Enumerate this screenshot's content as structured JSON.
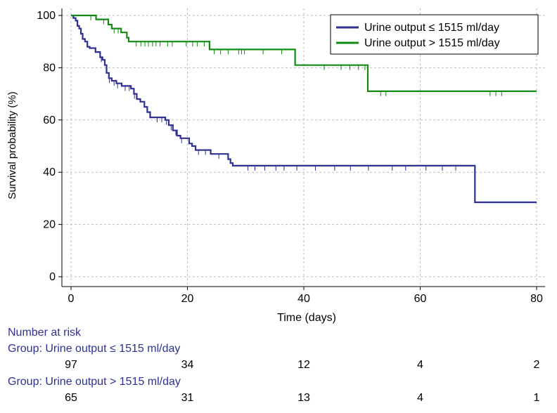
{
  "chart_data": {
    "type": "line",
    "subtype": "kaplan-meier",
    "title": "",
    "xlabel": "Time (days)",
    "ylabel": "Survival probability (%)",
    "xlim": [
      0,
      80
    ],
    "ylim": [
      0,
      100
    ],
    "xticks": [
      0,
      20,
      40,
      60,
      80
    ],
    "yticks": [
      0,
      20,
      40,
      60,
      80,
      100
    ],
    "grid": "dashed",
    "legend_position": "top-right",
    "series": [
      {
        "name": "Urine output ≤ 1515 ml/day",
        "color": "#2e3192",
        "steps": [
          [
            0,
            100
          ],
          [
            0.4,
            99
          ],
          [
            0.8,
            98
          ],
          [
            1.1,
            96
          ],
          [
            1.4,
            95
          ],
          [
            1.7,
            93
          ],
          [
            2.0,
            91
          ],
          [
            2.4,
            90
          ],
          [
            2.8,
            88
          ],
          [
            3.2,
            87.5
          ],
          [
            4.2,
            86
          ],
          [
            5.0,
            84
          ],
          [
            5.4,
            83
          ],
          [
            5.8,
            81
          ],
          [
            6.1,
            78
          ],
          [
            6.5,
            76
          ],
          [
            7.0,
            75
          ],
          [
            7.8,
            74
          ],
          [
            8.7,
            73
          ],
          [
            10.3,
            72
          ],
          [
            10.8,
            70
          ],
          [
            11.3,
            68
          ],
          [
            11.9,
            67
          ],
          [
            12.6,
            65
          ],
          [
            13.1,
            63
          ],
          [
            13.6,
            61
          ],
          [
            16.2,
            60
          ],
          [
            16.8,
            58
          ],
          [
            17.5,
            56
          ],
          [
            18.2,
            54
          ],
          [
            18.8,
            53
          ],
          [
            20.3,
            51
          ],
          [
            20.8,
            50
          ],
          [
            21.4,
            48.5
          ],
          [
            24.0,
            47
          ],
          [
            27.0,
            45
          ],
          [
            27.4,
            43.5
          ],
          [
            27.8,
            42.5
          ],
          [
            69.4,
            28.5
          ],
          [
            80,
            28.5
          ]
        ],
        "censored": [
          5.2,
          6.6,
          7.4,
          8.0,
          9.3,
          10.0,
          10.9,
          14.8,
          15.6,
          16.4,
          17.2,
          18.0,
          19.0,
          21.9,
          23.1,
          25.4,
          30.4,
          31.6,
          33.3,
          35.2,
          36.6,
          38.8,
          42.0,
          45.3,
          48.0,
          51.1,
          55.2,
          57.5,
          61.0,
          63.8,
          66.1
        ],
        "at_risk": [
          97,
          34,
          12,
          4,
          2
        ]
      },
      {
        "name": "Urine output > 1515 ml/day",
        "color": "#138a13",
        "steps": [
          [
            0,
            100
          ],
          [
            4.3,
            98.5
          ],
          [
            6.4,
            96.5
          ],
          [
            7.0,
            95
          ],
          [
            8.6,
            93.5
          ],
          [
            9.6,
            91.5
          ],
          [
            9.9,
            90
          ],
          [
            23.8,
            87
          ],
          [
            38.5,
            81
          ],
          [
            51.0,
            71
          ],
          [
            80,
            71
          ]
        ],
        "censored": [
          3.4,
          5.6,
          7.4,
          8.1,
          11.2,
          12.0,
          12.7,
          13.3,
          14.0,
          14.6,
          15.3,
          16.6,
          17.4,
          19.8,
          20.9,
          21.7,
          22.9,
          24.6,
          25.7,
          27.0,
          28.8,
          29.3,
          29.8,
          33.0,
          36.2,
          43.5,
          46.4,
          47.9,
          49.4,
          50.5,
          53.2,
          54.1,
          72.0,
          73.0,
          74.0
        ],
        "at_risk": [
          65,
          31,
          13,
          4,
          1
        ]
      }
    ]
  },
  "risk_table": {
    "title": "Number at risk",
    "groups": [
      {
        "label": "Group: Urine output ≤ 1515 ml/day",
        "counts": [
          "97",
          "34",
          "12",
          "4",
          "2"
        ]
      },
      {
        "label": "Group: Urine output > 1515 ml/day",
        "counts": [
          "65",
          "31",
          "13",
          "4",
          "1"
        ]
      }
    ]
  },
  "colors": {
    "axis": "#000000",
    "grid": "#bdbdbd",
    "risk_label": "#2e3192"
  }
}
